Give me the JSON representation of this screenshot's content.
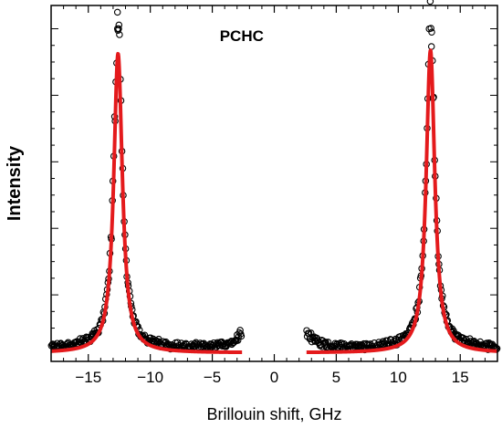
{
  "chart_data": {
    "type": "scatter",
    "title": "",
    "xlabel": "Brillouin shift, GHz",
    "ylabel": "Intensity",
    "xlim": [
      -18,
      18
    ],
    "ylim": [
      0,
      1.07
    ],
    "x_ticks": [
      -15,
      -10,
      -5,
      0,
      5,
      10,
      15
    ],
    "x_tick_labels": [
      "−15",
      "−10",
      "−5",
      "0",
      "5",
      "10",
      "15"
    ],
    "y_tick_labels_shown": false,
    "grid": false,
    "annotations": [
      {
        "text": "PCHC",
        "x": -4.4,
        "y": 0.98
      }
    ],
    "colors": {
      "data": "#000000",
      "fit": "#e41a1c"
    },
    "series": [
      {
        "name": "",
        "style": "open-circles",
        "ranges": [
          [
            -18,
            -2.6
          ],
          [
            2.6,
            18
          ]
        ],
        "peaks": [
          {
            "center": -12.6,
            "width": 0.4,
            "height": 0.98
          },
          {
            "center": 12.6,
            "width": 0.4,
            "height": 0.99
          }
        ],
        "baseline": 0.04,
        "edge_rise": 0.05
      },
      {
        "name": "",
        "style": "line",
        "ranges": [
          [
            -18,
            -2.6
          ],
          [
            2.6,
            18
          ]
        ],
        "peaks": [
          {
            "center": -12.6,
            "width": 0.42,
            "height": 0.9
          },
          {
            "center": 12.6,
            "width": 0.42,
            "height": 0.91
          }
        ],
        "baseline": 0.025
      }
    ]
  }
}
